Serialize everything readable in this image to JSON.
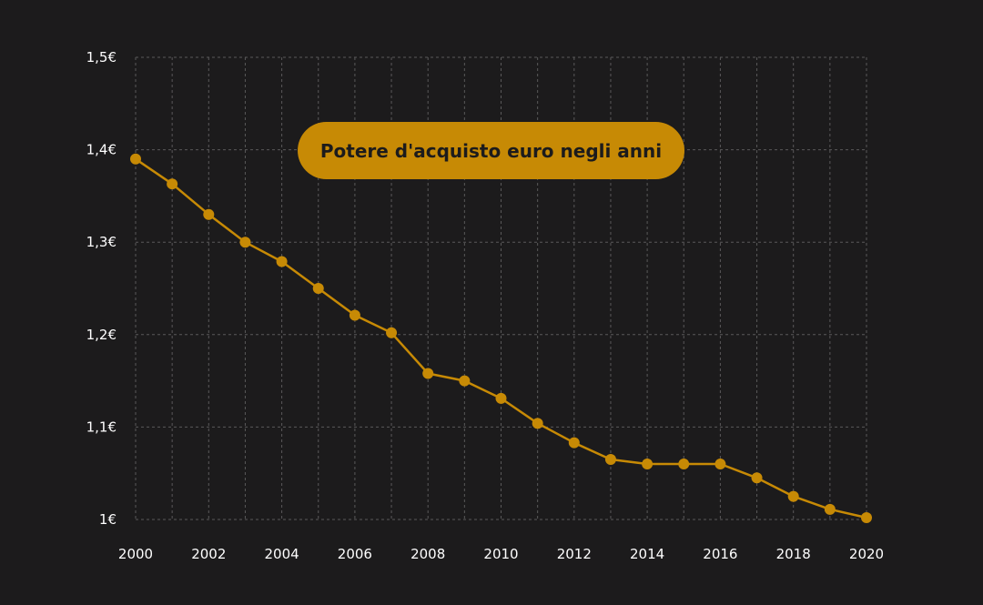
{
  "colors": {
    "background": "#1c1b1c",
    "accent": "#c78a05",
    "grid": "#5a595a",
    "text": "#ffffff"
  },
  "chart_data": {
    "type": "line",
    "title": "Potere d'acquisto euro negli anni",
    "xlabel": "",
    "ylabel": "",
    "x": [
      2000,
      2001,
      2002,
      2003,
      2004,
      2005,
      2006,
      2007,
      2008,
      2009,
      2010,
      2011,
      2012,
      2013,
      2014,
      2015,
      2016,
      2017,
      2018,
      2019,
      2020
    ],
    "values": [
      1.39,
      1.363,
      1.33,
      1.3,
      1.279,
      1.25,
      1.221,
      1.202,
      1.158,
      1.15,
      1.131,
      1.104,
      1.083,
      1.065,
      1.06,
      1.06,
      1.06,
      1.045,
      1.025,
      1.011,
      1.002
    ],
    "ylim": [
      1.0,
      1.5
    ],
    "xlim": [
      2000,
      2020
    ],
    "x_ticks": [
      "2000",
      "2002",
      "2004",
      "2006",
      "2008",
      "2010",
      "2012",
      "2014",
      "2016",
      "2018",
      "2020"
    ],
    "y_ticks": [
      "1€",
      "1,1€",
      "1,2€",
      "1,3€",
      "1,4€",
      "1,5€"
    ],
    "grid": true,
    "legend": "none"
  }
}
